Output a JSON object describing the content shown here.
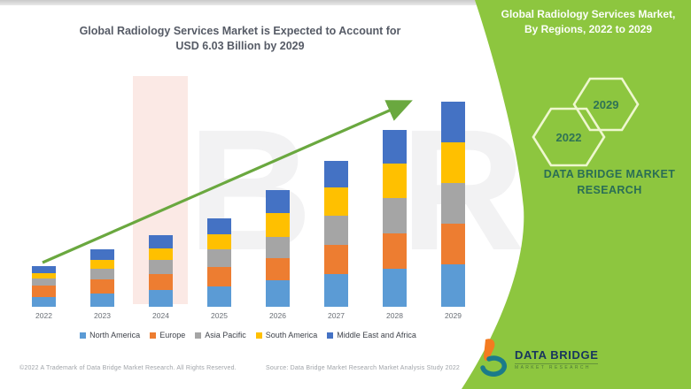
{
  "header": {
    "title_line1": "Global Radiology Services Market is Expected to Account for",
    "title_line2": "USD 6.03 Billion by 2029"
  },
  "panel": {
    "accent_color": "#8DC63F",
    "title_line1": "Global Radiology Services Market,",
    "title_line2": "By Regions, 2022 to 2029",
    "hexagon_upper_year": "2029",
    "hexagon_lower_year": "2022",
    "brand_line1": "DATA BRIDGE MARKET",
    "brand_line2": "RESEARCH"
  },
  "logo": {
    "name": "DATA BRIDGE",
    "subtitle": "MARKET RESEARCH",
    "orange": "#F47B20",
    "teal": "#1B7B8A"
  },
  "footer": {
    "left": "©2022 A Trademark of Data Bridge Market Research. All Rights Reserved.",
    "right": "Source: Data Bridge Market Research Market Analysis Study 2022"
  },
  "watermark": {
    "letters": [
      "B",
      "R"
    ]
  },
  "arrow_color": "#6aa83f",
  "chart_data": {
    "type": "bar",
    "stacked": true,
    "title": "Global Radiology Services Market is Expected to Account for USD 6.03 Billion by 2029",
    "unit": "USD Billion",
    "xlabel": "",
    "ylabel": "",
    "ylim": [
      0,
      6.5
    ],
    "grid": false,
    "legend_position": "bottom",
    "categories": [
      "2022",
      "2023",
      "2024",
      "2025",
      "2026",
      "2027",
      "2028",
      "2029"
    ],
    "totals": [
      1.2,
      1.7,
      2.1,
      2.6,
      3.42,
      4.3,
      5.2,
      6.03
    ],
    "series": [
      {
        "name": "North America",
        "color": "#5B9BD5",
        "values": [
          0.3,
          0.4,
          0.5,
          0.6,
          0.78,
          0.95,
          1.12,
          1.25
        ]
      },
      {
        "name": "Europe",
        "color": "#ED7D31",
        "values": [
          0.32,
          0.4,
          0.47,
          0.56,
          0.66,
          0.88,
          1.05,
          1.2
        ]
      },
      {
        "name": "Asia Pacific",
        "color": "#A5A5A5",
        "values": [
          0.22,
          0.33,
          0.42,
          0.54,
          0.62,
          0.85,
          1.03,
          1.2
        ]
      },
      {
        "name": "South America",
        "color": "#FFC000",
        "values": [
          0.16,
          0.26,
          0.32,
          0.42,
          0.7,
          0.82,
          1.0,
          1.18
        ]
      },
      {
        "name": "Middle East and Africa",
        "color": "#4472C4",
        "values": [
          0.2,
          0.31,
          0.39,
          0.48,
          0.66,
          0.8,
          1.0,
          1.2
        ]
      }
    ]
  }
}
